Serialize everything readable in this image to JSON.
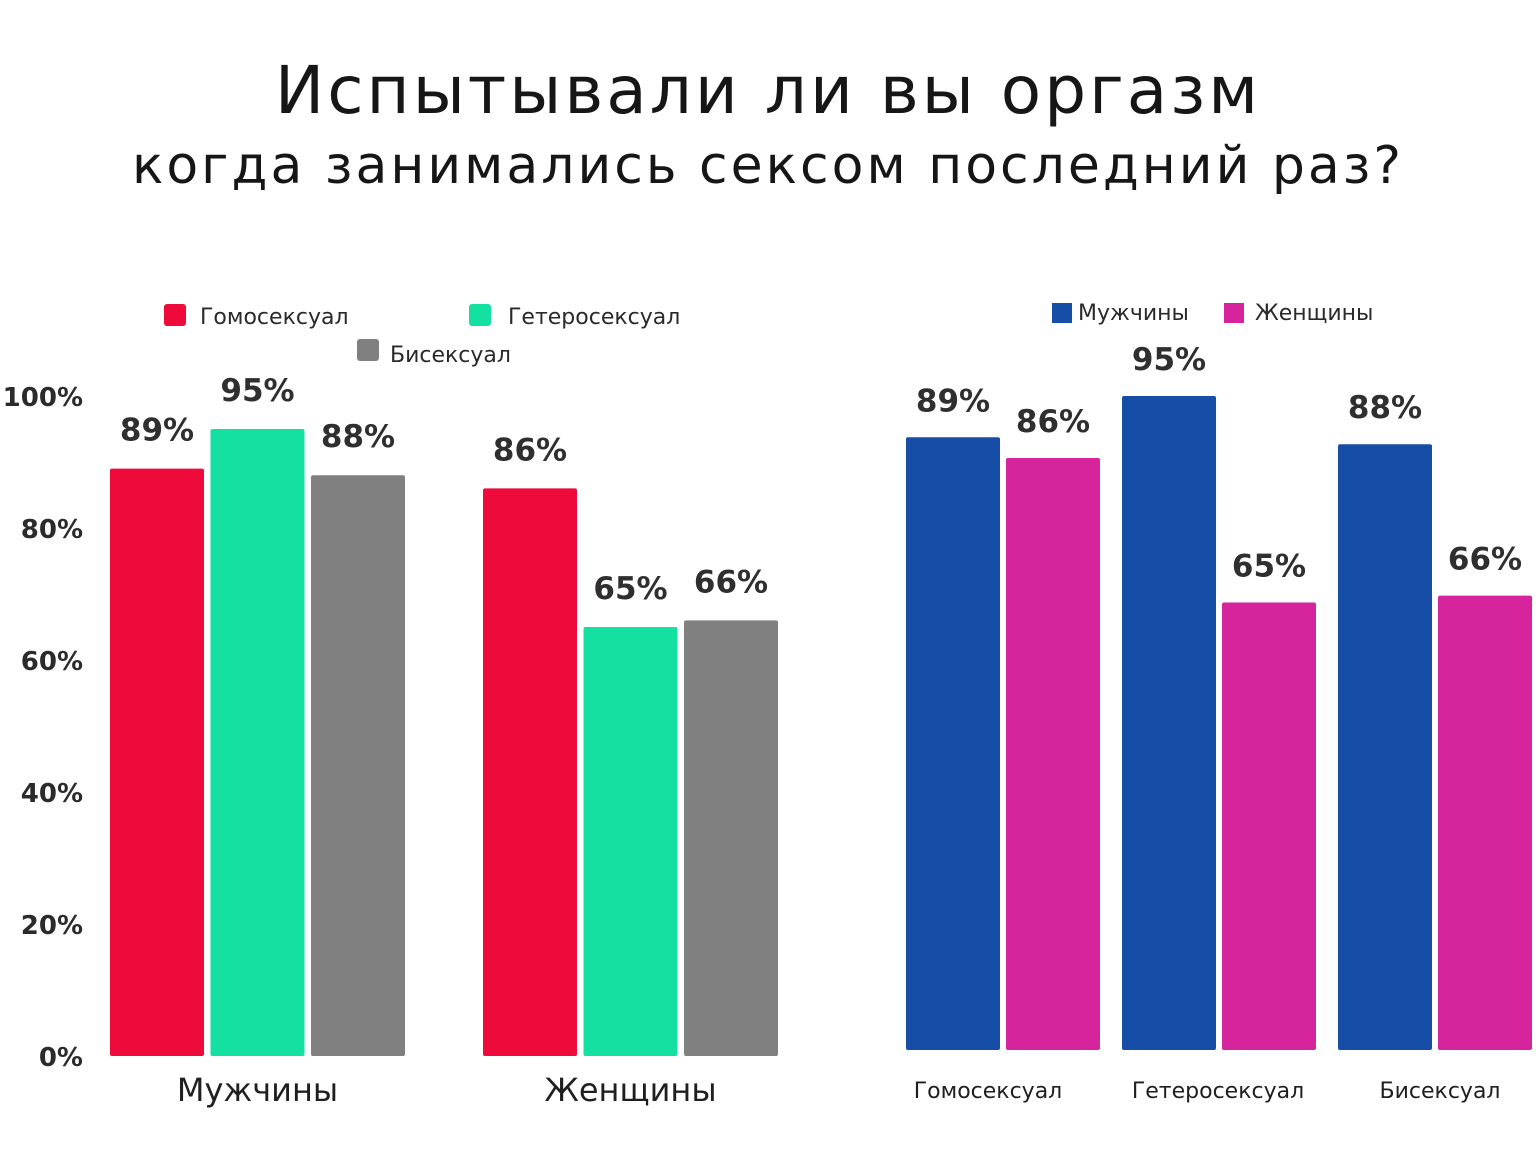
{
  "title": {
    "line1": "Испытывали ли вы оргазм",
    "line2": "когда занимались сексом последний раз?"
  },
  "chart_data": [
    {
      "type": "bar",
      "title": "Испытывали ли вы оргазм когда занимались сексом последний раз?",
      "categories": [
        "Мужчины",
        "Женщины"
      ],
      "series": [
        {
          "name": "Гомосексуал",
          "color": "#ef0a3c",
          "values": [
            89,
            86
          ],
          "labels": [
            "89%",
            "86%"
          ]
        },
        {
          "name": "Гетеросексуал",
          "color": "#14e0a2",
          "values": [
            95,
            65
          ],
          "labels": [
            "95%",
            "65%"
          ]
        },
        {
          "name": "Бисексуал",
          "color": "#808080",
          "values": [
            88,
            66
          ],
          "labels": [
            "88%",
            "66%"
          ]
        }
      ],
      "yticks": [
        "0%",
        "20%",
        "40%",
        "60%",
        "80%",
        "100%"
      ],
      "ylim": [
        0,
        100
      ],
      "grid": false,
      "legend": "top"
    },
    {
      "type": "bar",
      "categories": [
        "Гомосексуал",
        "Гетеросексуал",
        "Бисексуал"
      ],
      "series": [
        {
          "name": "Мужчины",
          "color": "#164da6",
          "values": [
            89,
            95,
            88
          ],
          "labels": [
            "89%",
            "95%",
            "88%"
          ]
        },
        {
          "name": "Женщины",
          "color": "#d6249c",
          "values": [
            86,
            65,
            66
          ],
          "labels": [
            "86%",
            "65%",
            "66%"
          ]
        }
      ],
      "ylim": [
        0,
        100
      ],
      "grid": false,
      "legend": "top-right"
    }
  ]
}
